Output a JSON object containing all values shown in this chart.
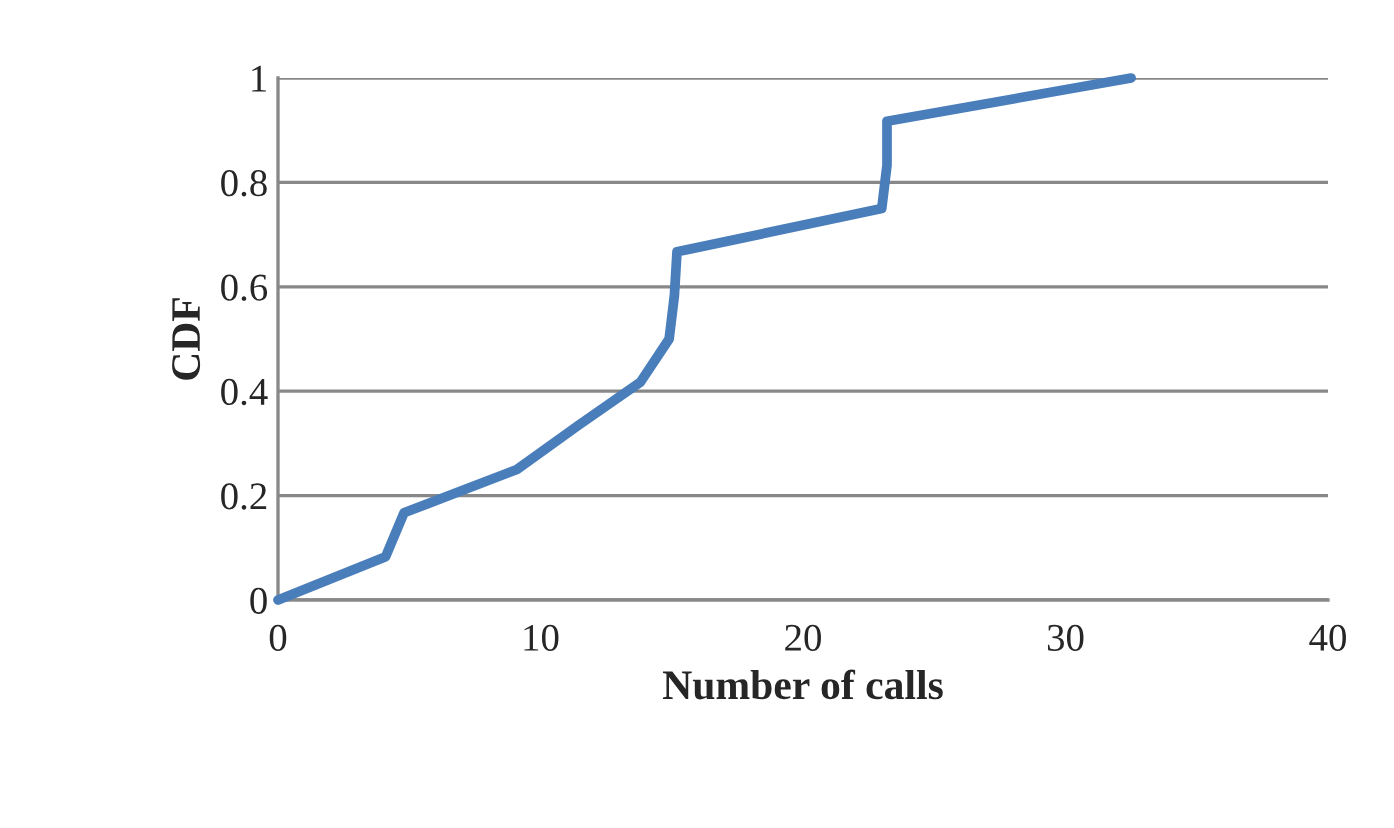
{
  "chart_data": {
    "type": "line",
    "xlabel": "Number of calls",
    "ylabel": "CDF",
    "series": [
      {
        "color": "#4a7ebb",
        "x": [
          0,
          4.1,
          4.8,
          9.1,
          11.4,
          13.8,
          14.9,
          15.1,
          15.2,
          23.0,
          23.2,
          23.2,
          32.5
        ],
        "values": [
          0,
          0.083,
          0.167,
          0.25,
          0.333,
          0.417,
          0.5,
          0.583,
          0.667,
          0.75,
          0.833,
          0.917,
          1
        ]
      }
    ],
    "xlim": [
      0,
      40
    ],
    "xticks": [
      0,
      10,
      20,
      30,
      40
    ],
    "ylim": [
      0,
      1
    ],
    "yticks": [
      0,
      0.2,
      0.4,
      0.6,
      0.8,
      1
    ],
    "grid": "y",
    "legend": false,
    "marker": "none",
    "line_style": "solid"
  }
}
